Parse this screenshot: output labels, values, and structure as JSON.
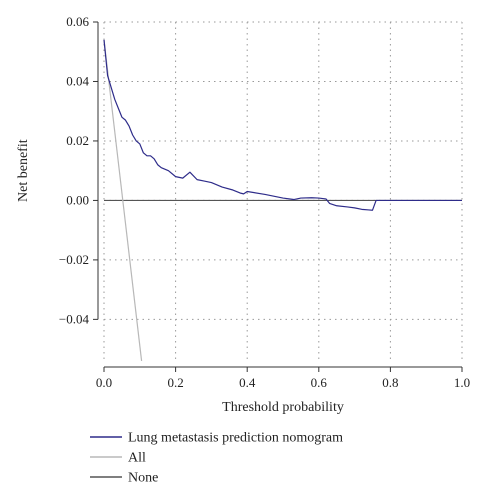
{
  "chart_data": {
    "type": "line",
    "xlabel": "Threshold probability",
    "ylabel": "Net benefit",
    "xlim": [
      0.0,
      1.0
    ],
    "ylim": [
      -0.054,
      0.06
    ],
    "xticks": [
      {
        "v": 0.0,
        "label": "0.0"
      },
      {
        "v": 0.2,
        "label": "0.2"
      },
      {
        "v": 0.4,
        "label": "0.4"
      },
      {
        "v": 0.6,
        "label": "0.6"
      },
      {
        "v": 0.8,
        "label": "0.8"
      },
      {
        "v": 1.0,
        "label": "1.0"
      }
    ],
    "yticks": [
      {
        "v": 0.06,
        "label": "0.06"
      },
      {
        "v": 0.04,
        "label": "0.04"
      },
      {
        "v": 0.02,
        "label": "0.02"
      },
      {
        "v": 0.0,
        "label": "0.00"
      },
      {
        "v": -0.02,
        "label": "−0.02"
      },
      {
        "v": -0.04,
        "label": "−0.04"
      }
    ],
    "grid": true,
    "legend_placement": "bottom",
    "series": [
      {
        "name": "Lung metastasis prediction nomogram",
        "color": "#2e2c8a",
        "x": [
          0.0,
          0.005,
          0.01,
          0.02,
          0.03,
          0.04,
          0.05,
          0.06,
          0.07,
          0.08,
          0.09,
          0.1,
          0.11,
          0.12,
          0.13,
          0.14,
          0.15,
          0.16,
          0.18,
          0.2,
          0.22,
          0.24,
          0.26,
          0.28,
          0.3,
          0.33,
          0.36,
          0.38,
          0.39,
          0.4,
          0.45,
          0.5,
          0.53,
          0.55,
          0.58,
          0.6,
          0.62,
          0.63,
          0.65,
          0.68,
          0.7,
          0.72,
          0.74,
          0.75,
          0.76,
          1.0
        ],
        "y": [
          0.054,
          0.048,
          0.042,
          0.038,
          0.034,
          0.031,
          0.028,
          0.027,
          0.025,
          0.022,
          0.02,
          0.019,
          0.016,
          0.015,
          0.015,
          0.014,
          0.012,
          0.011,
          0.01,
          0.008,
          0.0075,
          0.0095,
          0.007,
          0.0065,
          0.006,
          0.0045,
          0.0035,
          0.0025,
          0.0022,
          0.003,
          0.002,
          0.0008,
          0.0003,
          0.0008,
          0.0009,
          0.0008,
          0.0005,
          -0.001,
          -0.0018,
          -0.0022,
          -0.0025,
          -0.003,
          -0.0032,
          -0.0033,
          0.0,
          0.0
        ]
      },
      {
        "name": "All",
        "color": "#b8b8b8",
        "x": [
          0.0,
          0.105
        ],
        "y": [
          0.054,
          -0.054
        ]
      },
      {
        "name": "None",
        "color": "#555555",
        "x": [
          0.0,
          1.0
        ],
        "y": [
          0.0,
          0.0
        ]
      }
    ]
  }
}
